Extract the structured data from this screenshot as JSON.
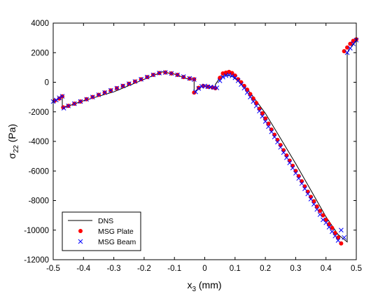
{
  "chart_data": {
    "type": "scatter",
    "xlabel": "x",
    "xlabel_sub": "3",
    "xlabel_unit": " (mm)",
    "ylabel": "σ",
    "ylabel_sub": "22",
    "ylabel_unit": " (Pa)",
    "xlim": [
      -0.5,
      0.5
    ],
    "ylim": [
      -12000,
      4000
    ],
    "xticks": [
      -0.5,
      -0.4,
      -0.3,
      -0.2,
      -0.1,
      0,
      0.1,
      0.2,
      0.3,
      0.4,
      0.5
    ],
    "xtick_labels": [
      "-0.5",
      "-0.4",
      "-0.3",
      "-0.2",
      "-0.1",
      "0",
      "0.1",
      "0.2",
      "0.3",
      "0.4",
      "0.5"
    ],
    "yticks": [
      4000,
      2000,
      0,
      -2000,
      -4000,
      -6000,
      -8000,
      -10000,
      -12000
    ],
    "ytick_labels": [
      "4000",
      "2000",
      "0",
      "-2000",
      "-4000",
      "-6000",
      "-8000",
      "-10000",
      "-12000"
    ],
    "grid": false,
    "legend_position": "bottom-left",
    "series": [
      {
        "name": "DNS",
        "style": "line",
        "color": "#000000",
        "x": [
          -0.5,
          -0.47,
          -0.47,
          -0.4,
          -0.3,
          -0.2,
          -0.14,
          -0.1,
          -0.06,
          -0.035,
          -0.035,
          -0.02,
          -0.005,
          0.0,
          0.02,
          0.035,
          0.035,
          0.05,
          0.07,
          0.09,
          0.1,
          0.12,
          0.15,
          0.2,
          0.25,
          0.3,
          0.35,
          0.4,
          0.44,
          0.47,
          0.47,
          0.48,
          0.5
        ],
        "y": [
          -1300,
          -1000,
          -1750,
          -1250,
          -650,
          200,
          700,
          550,
          250,
          200,
          -700,
          -380,
          -250,
          -280,
          -350,
          -400,
          -150,
          300,
          500,
          400,
          250,
          -100,
          -700,
          -2100,
          -3800,
          -5500,
          -7300,
          -9100,
          -10300,
          -10800,
          2000,
          2300,
          2800
        ]
      },
      {
        "name": "MSG Plate",
        "style": "marker",
        "marker": "dot",
        "color": "#ff0000",
        "x": [
          -0.495,
          -0.48,
          -0.47,
          -0.467,
          -0.45,
          -0.43,
          -0.41,
          -0.39,
          -0.37,
          -0.35,
          -0.33,
          -0.31,
          -0.29,
          -0.27,
          -0.25,
          -0.23,
          -0.21,
          -0.19,
          -0.17,
          -0.15,
          -0.13,
          -0.11,
          -0.09,
          -0.07,
          -0.05,
          -0.035,
          -0.035,
          -0.02,
          -0.005,
          0.01,
          0.025,
          0.035,
          0.05,
          0.06,
          0.07,
          0.08,
          0.09,
          0.1,
          0.11,
          0.12,
          0.13,
          0.14,
          0.15,
          0.16,
          0.17,
          0.18,
          0.19,
          0.2,
          0.21,
          0.22,
          0.23,
          0.24,
          0.25,
          0.26,
          0.27,
          0.28,
          0.29,
          0.3,
          0.31,
          0.32,
          0.33,
          0.34,
          0.35,
          0.36,
          0.37,
          0.38,
          0.39,
          0.4,
          0.41,
          0.42,
          0.43,
          0.44,
          0.45,
          0.46,
          0.47,
          0.48,
          0.49,
          0.5
        ],
        "y": [
          -1250,
          -1100,
          -950,
          -1700,
          -1600,
          -1450,
          -1300,
          -1150,
          -1000,
          -850,
          -700,
          -550,
          -400,
          -250,
          -100,
          50,
          200,
          350,
          500,
          620,
          660,
          600,
          500,
          350,
          250,
          200,
          -700,
          -380,
          -250,
          -300,
          -350,
          -400,
          300,
          600,
          650,
          700,
          620,
          450,
          200,
          0,
          -250,
          -500,
          -800,
          -1100,
          -1400,
          -1800,
          -2100,
          -2450,
          -2800,
          -3200,
          -3550,
          -3900,
          -4250,
          -4600,
          -4950,
          -5300,
          -5650,
          -6000,
          -6350,
          -6700,
          -7050,
          -7400,
          -7750,
          -8050,
          -8400,
          -8700,
          -9000,
          -9300,
          -9600,
          -9850,
          -10200,
          -10500,
          -10900,
          2100,
          2350,
          2600,
          2800,
          2900
        ]
      },
      {
        "name": "MSG Beam",
        "style": "marker",
        "marker": "x",
        "color": "#0000ff",
        "x": [
          -0.5,
          -0.49,
          -0.48,
          -0.47,
          -0.465,
          -0.45,
          -0.43,
          -0.41,
          -0.39,
          -0.37,
          -0.35,
          -0.33,
          -0.31,
          -0.29,
          -0.27,
          -0.25,
          -0.23,
          -0.21,
          -0.19,
          -0.17,
          -0.15,
          -0.13,
          -0.11,
          -0.09,
          -0.07,
          -0.05,
          -0.035,
          -0.03,
          -0.02,
          -0.01,
          0.0,
          0.01,
          0.02,
          0.03,
          0.04,
          0.05,
          0.06,
          0.07,
          0.08,
          0.09,
          0.1,
          0.11,
          0.12,
          0.13,
          0.14,
          0.15,
          0.16,
          0.17,
          0.18,
          0.19,
          0.2,
          0.21,
          0.22,
          0.23,
          0.24,
          0.25,
          0.26,
          0.27,
          0.28,
          0.29,
          0.3,
          0.31,
          0.32,
          0.33,
          0.34,
          0.35,
          0.36,
          0.37,
          0.38,
          0.39,
          0.4,
          0.41,
          0.42,
          0.43,
          0.44,
          0.45,
          0.46,
          0.47,
          0.48,
          0.49,
          0.5
        ],
        "y": [
          -1300,
          -1200,
          -1050,
          -950,
          -1750,
          -1600,
          -1450,
          -1300,
          -1150,
          -1000,
          -850,
          -700,
          -550,
          -400,
          -250,
          -100,
          50,
          200,
          350,
          500,
          620,
          660,
          600,
          500,
          380,
          260,
          180,
          -650,
          -420,
          -280,
          -250,
          -300,
          -320,
          -350,
          -380,
          100,
          350,
          450,
          500,
          430,
          300,
          100,
          -150,
          -400,
          -700,
          -1000,
          -1300,
          -1600,
          -1950,
          -2300,
          -2650,
          -3000,
          -3350,
          -3700,
          -4050,
          -4400,
          -4750,
          -5100,
          -5450,
          -5800,
          -6150,
          -6500,
          -6850,
          -7200,
          -7550,
          -7900,
          -8250,
          -8600,
          -8950,
          -9300,
          -9500,
          -9800,
          -10100,
          -10400,
          -10700,
          -10000,
          -10500,
          2000,
          2300,
          2600,
          2850
        ]
      }
    ]
  }
}
